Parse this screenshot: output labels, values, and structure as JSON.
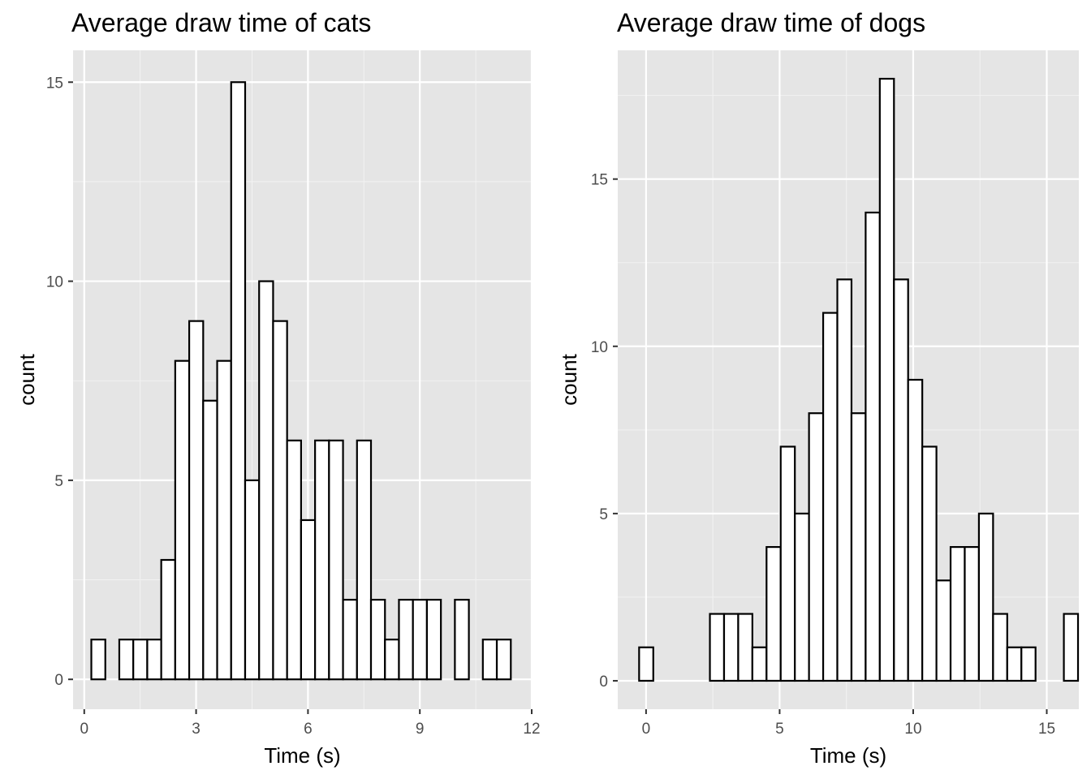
{
  "chart_data": [
    {
      "type": "bar",
      "title": "Average draw time of cats",
      "xlabel": "Time (s)",
      "ylabel": "count",
      "xlim": [
        -0.3,
        12
      ],
      "ylim": [
        -0.75,
        15.8
      ],
      "xticks": [
        0,
        3,
        6,
        9,
        12
      ],
      "yticks": [
        0,
        5,
        10,
        15
      ],
      "grid": true,
      "bin_width": 0.375,
      "first_bin_start": 0.19,
      "counts": [
        1,
        0,
        1,
        1,
        1,
        3,
        8,
        9,
        7,
        8,
        15,
        5,
        10,
        9,
        6,
        4,
        6,
        6,
        2,
        6,
        2,
        1,
        2,
        2,
        2,
        0,
        2,
        0,
        1,
        1
      ]
    },
    {
      "type": "bar",
      "title": "Average draw time of dogs",
      "xlabel": "Time (s)",
      "ylabel": "count",
      "xlim": [
        -1.06,
        16.2
      ],
      "ylim": [
        -0.85,
        18.85
      ],
      "xticks": [
        0,
        5,
        10,
        15
      ],
      "yticks": [
        0,
        5,
        10,
        15
      ],
      "grid": true,
      "bin_width": 0.53,
      "first_bin_start": -0.26,
      "counts": [
        1,
        0,
        0,
        0,
        0,
        2,
        2,
        2,
        1,
        4,
        7,
        5,
        8,
        11,
        12,
        8,
        14,
        18,
        12,
        9,
        7,
        3,
        4,
        4,
        5,
        2,
        1,
        1,
        0,
        0,
        2
      ]
    }
  ]
}
